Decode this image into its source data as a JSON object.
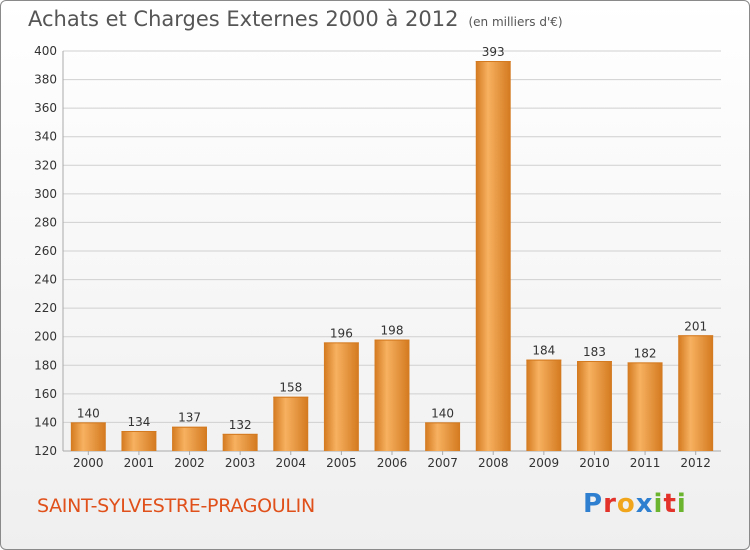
{
  "title": "Achats et Charges Externes 2000 à 2012",
  "unit_note": "(en milliers d'€)",
  "town": "SAINT-SYLVESTRE-PRAGOULIN",
  "logo": {
    "letters": [
      {
        "ch": "P",
        "color": "#2e7fd0"
      },
      {
        "ch": "r",
        "color": "#e2322a"
      },
      {
        "ch": "o",
        "color": "#f0a51b"
      },
      {
        "ch": "x",
        "color": "#2e7fd0"
      },
      {
        "ch": "i",
        "color": "#6bb42e"
      },
      {
        "ch": "t",
        "color": "#e2322a"
      },
      {
        "ch": "i",
        "color": "#6bb42e"
      }
    ]
  },
  "colors": {
    "bar_light": "#f7b160",
    "bar_dark": "#d3791f",
    "grid": "#d0d0d0",
    "axis_text": "#333333",
    "title": "#555555",
    "town": "#e0501a"
  },
  "chart_data": {
    "type": "bar",
    "title": "Achats et Charges Externes 2000 à 2012",
    "categories": [
      "2000",
      "2001",
      "2002",
      "2003",
      "2004",
      "2005",
      "2006",
      "2007",
      "2008",
      "2009",
      "2010",
      "2011",
      "2012"
    ],
    "values": [
      140,
      134,
      137,
      132,
      158,
      196,
      198,
      140,
      393,
      184,
      183,
      182,
      201
    ],
    "ylim": [
      120,
      400
    ],
    "yticks": [
      120,
      140,
      160,
      180,
      200,
      220,
      240,
      260,
      280,
      300,
      320,
      340,
      360,
      380,
      400
    ],
    "grid": true,
    "xlabel": "",
    "ylabel": ""
  }
}
